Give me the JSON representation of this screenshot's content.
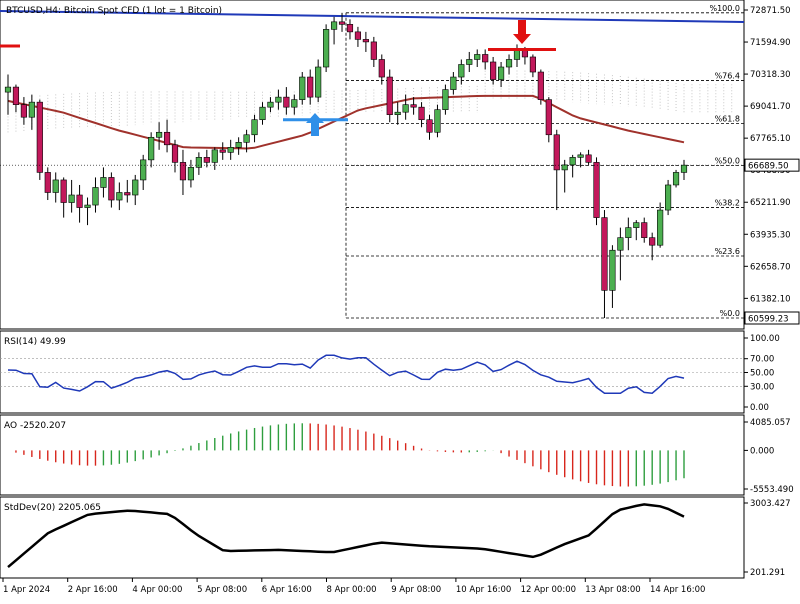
{
  "chart_data": {
    "type": "candlestick",
    "symbol_header": "BTCUSD,H4: Bitcoin Spot CFD (1 lot = 1 Bitcoin)",
    "time_labels": [
      "1 Apr 2024",
      "2 Apr 16:00",
      "4 Apr 00:00",
      "5 Apr 08:00",
      "6 Apr 16:00",
      "8 Apr 00:00",
      "9 Apr 08:00",
      "10 Apr 16:00",
      "12 Apr 00:00",
      "13 Apr 08:00",
      "14 Apr 16:00"
    ],
    "price_axis": {
      "ticks": [
        "72871.50",
        "71594.90",
        "70318.30",
        "69041.70",
        "67765.10",
        "66488.50",
        "65211.90",
        "63935.30",
        "62658.70",
        "61382.10"
      ],
      "ylim": [
        60599.23,
        72871.5
      ],
      "current_price": "66689.50",
      "current_price_color": "#ffffff",
      "current_price_bg": "#ffffff",
      "low_label": "60599.23"
    },
    "fibonacci": {
      "levels": [
        {
          "label": "%100.0",
          "price": 72760
        },
        {
          "label": "%76.4",
          "price": 70060
        },
        {
          "label": "%61.8",
          "price": 68350
        },
        {
          "label": "%50.0",
          "price": 66680
        },
        {
          "label": "%38.2",
          "price": 65000
        },
        {
          "label": "%23.6",
          "price": 63070
        },
        {
          "label": "%0.0",
          "price": 60599.23
        }
      ],
      "color": "#000000"
    },
    "candles": {
      "up_color": "#4caf50",
      "down_color": "#c2185b",
      "ohlc": [
        [
          69600,
          70300,
          68700,
          69800
        ],
        [
          69800,
          69900,
          68800,
          69100
        ],
        [
          69100,
          69400,
          68300,
          68600
        ],
        [
          68600,
          69500,
          68100,
          69200
        ],
        [
          69200,
          69300,
          66100,
          66400
        ],
        [
          66400,
          66600,
          65300,
          65600
        ],
        [
          65600,
          66400,
          65200,
          66100
        ],
        [
          66100,
          66200,
          64600,
          65200
        ],
        [
          65200,
          66100,
          64800,
          65500
        ],
        [
          65500,
          65900,
          64400,
          65000
        ],
        [
          65000,
          65400,
          64300,
          65100
        ],
        [
          65100,
          66200,
          64800,
          65800
        ],
        [
          65800,
          66600,
          65400,
          66200
        ],
        [
          66200,
          66400,
          65000,
          65300
        ],
        [
          65300,
          66000,
          64900,
          65600
        ],
        [
          65600,
          66100,
          65200,
          65500
        ],
        [
          65500,
          66300,
          65100,
          66100
        ],
        [
          66100,
          67100,
          65700,
          66900
        ],
        [
          66900,
          68000,
          66600,
          67800
        ],
        [
          67800,
          68400,
          67300,
          68000
        ],
        [
          68000,
          68500,
          67200,
          67500
        ],
        [
          67500,
          67700,
          66400,
          66800
        ],
        [
          66800,
          67300,
          65500,
          66100
        ],
        [
          66100,
          66900,
          65800,
          66600
        ],
        [
          66600,
          67200,
          66300,
          67000
        ],
        [
          67000,
          67300,
          66600,
          66800
        ],
        [
          66800,
          67400,
          66500,
          67300
        ],
        [
          67300,
          67600,
          66900,
          67200
        ],
        [
          67200,
          67700,
          66900,
          67400
        ],
        [
          67400,
          67800,
          67100,
          67600
        ],
        [
          67600,
          68100,
          67200,
          67900
        ],
        [
          67900,
          68700,
          67600,
          68500
        ],
        [
          68500,
          69200,
          68300,
          69000
        ],
        [
          69000,
          69400,
          68800,
          69200
        ],
        [
          69200,
          69700,
          68900,
          69400
        ],
        [
          69400,
          69800,
          68700,
          69000
        ],
        [
          69000,
          69500,
          68700,
          69300
        ],
        [
          69300,
          70400,
          69100,
          70200
        ],
        [
          70200,
          70500,
          69100,
          69400
        ],
        [
          69400,
          70900,
          69200,
          70600
        ],
        [
          70600,
          72300,
          70400,
          72100
        ],
        [
          72100,
          72600,
          71500,
          72400
        ],
        [
          72400,
          72760,
          72000,
          72300
        ],
        [
          72300,
          72500,
          71700,
          72000
        ],
        [
          72000,
          72200,
          71400,
          71700
        ],
        [
          71700,
          72000,
          71200,
          71600
        ],
        [
          71600,
          71800,
          70600,
          70900
        ],
        [
          70900,
          71100,
          69900,
          70200
        ],
        [
          70200,
          70500,
          68400,
          68700
        ],
        [
          68700,
          69200,
          68300,
          68800
        ],
        [
          68800,
          69500,
          68500,
          69100
        ],
        [
          69100,
          69400,
          68700,
          69000
        ],
        [
          69000,
          69200,
          68200,
          68500
        ],
        [
          68500,
          68700,
          67700,
          68000
        ],
        [
          68000,
          69100,
          67800,
          68900
        ],
        [
          68900,
          69900,
          68700,
          69700
        ],
        [
          69700,
          70400,
          69500,
          70200
        ],
        [
          70200,
          70900,
          69900,
          70700
        ],
        [
          70700,
          71200,
          70400,
          70900
        ],
        [
          70900,
          71300,
          70600,
          71100
        ],
        [
          71100,
          71300,
          70500,
          70800
        ],
        [
          70800,
          71000,
          69900,
          70100
        ],
        [
          70100,
          70800,
          69800,
          70600
        ],
        [
          70600,
          71100,
          70300,
          70900
        ],
        [
          70900,
          71500,
          70600,
          71300
        ],
        [
          71300,
          71400,
          70700,
          71000
        ],
        [
          71000,
          71100,
          70200,
          70400
        ],
        [
          70400,
          70500,
          69100,
          69300
        ],
        [
          69300,
          69400,
          67600,
          67900
        ],
        [
          67900,
          68100,
          64900,
          66500
        ],
        [
          66500,
          66900,
          65600,
          66700
        ],
        [
          66700,
          67100,
          66200,
          67000
        ],
        [
          67000,
          67200,
          66600,
          67100
        ],
        [
          67100,
          67300,
          66700,
          66800
        ],
        [
          66800,
          67000,
          64300,
          64600
        ],
        [
          64600,
          64900,
          60599,
          61700
        ],
        [
          61700,
          63500,
          61000,
          63300
        ],
        [
          63300,
          64200,
          62100,
          63800
        ],
        [
          63800,
          64600,
          63300,
          64200
        ],
        [
          64200,
          64500,
          63700,
          64400
        ],
        [
          64400,
          64600,
          63600,
          63800
        ],
        [
          63800,
          64000,
          62900,
          63500
        ],
        [
          63500,
          65200,
          63400,
          64900
        ],
        [
          64900,
          66100,
          64700,
          65900
        ],
        [
          65900,
          66500,
          65800,
          66400
        ],
        [
          66400,
          66900,
          66100,
          66690
        ]
      ]
    },
    "annotations": {
      "buy_arrow_color": "#2f8fe8",
      "sell_arrow_color": "#e01010",
      "support_line_color": "#2f8fe8",
      "resistance_line_color": "#e01010",
      "trend_line_color": "#1f39b8",
      "ma_color": "#a0322c",
      "ichimoku_cloud_color": "#c8c8c8",
      "left_marker_color": "#e01010"
    },
    "rsi": {
      "label": "RSI(14) 49.99",
      "ticks": [
        "100.00",
        "70.00",
        "50.00",
        "30.00",
        "0.00"
      ],
      "levels": [
        70,
        50,
        30
      ],
      "color": "#1f39b8"
    },
    "ao": {
      "label": "AO -2520.207",
      "ticks": [
        "4085.057",
        "0.000",
        "-5553.490"
      ],
      "ylim": [
        -5553.49,
        4085.057
      ],
      "up_color": "#2e9e3e",
      "down_color": "#d8261c"
    },
    "stddev": {
      "label": "StdDev(20) 2205.065",
      "ticks": [
        "3003.427",
        "201.291"
      ],
      "ylim": [
        201.291,
        3003.427
      ],
      "color": "#000000"
    }
  }
}
